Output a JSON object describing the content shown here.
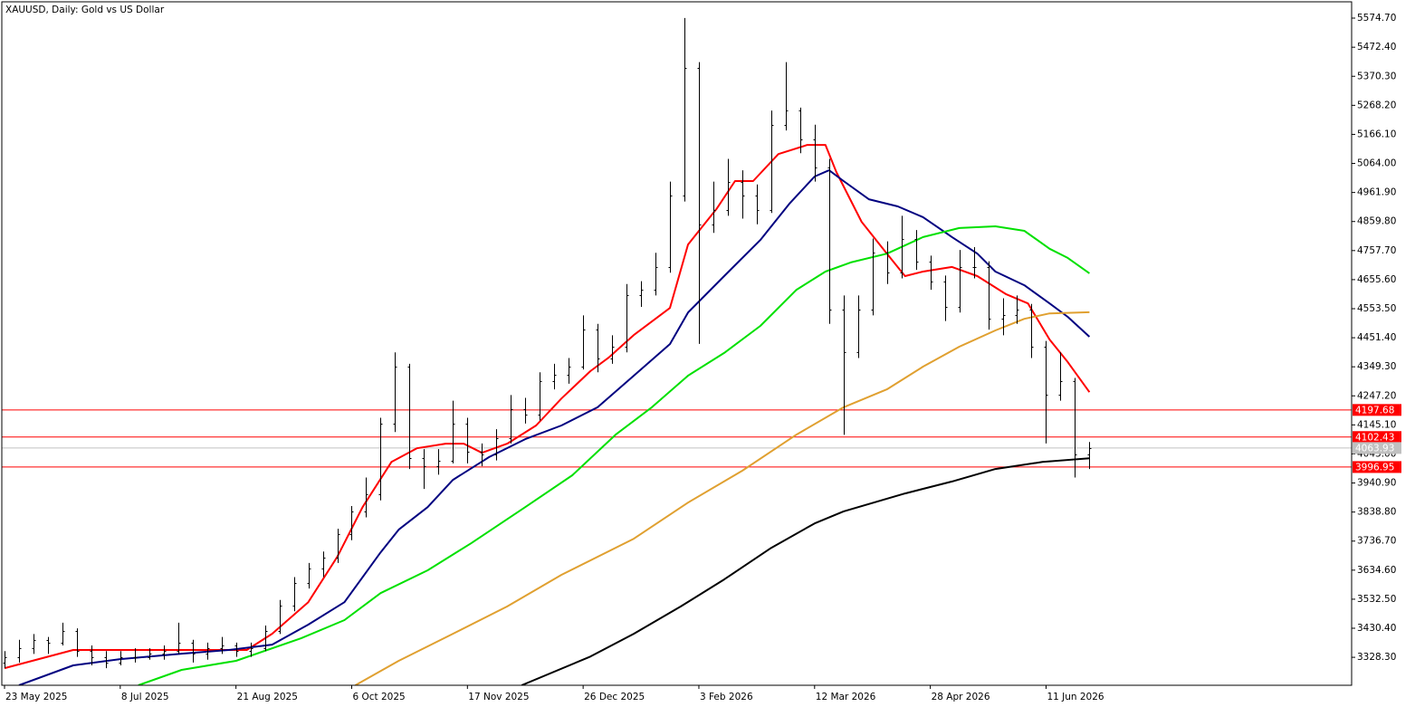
{
  "chart_data": {
    "type": "ohlc",
    "title": "XAUUSD, Daily:  Gold vs US Dollar",
    "color": "#000000",
    "xlim": [
      -0.75,
      372.5
    ],
    "ylim": [
      3230,
      5632
    ],
    "xticks": [
      {
        "value": 0,
        "label": "23 May 2025"
      },
      {
        "value": 32,
        "label": "8 Jul 2025"
      },
      {
        "value": 64,
        "label": "21 Aug 2025"
      },
      {
        "value": 96,
        "label": "6 Oct 2025"
      },
      {
        "value": 128,
        "label": "17 Nov 2025"
      },
      {
        "value": 160,
        "label": "26 Dec 2025"
      },
      {
        "value": 192,
        "label": "3 Feb 2026"
      },
      {
        "value": 224,
        "label": "12 Mar 2026"
      },
      {
        "value": 256,
        "label": "28 Apr 2026"
      },
      {
        "value": 288,
        "label": "11 Jun 2026"
      }
    ],
    "yticks": [
      {
        "value": 5574.7,
        "label": "5574.70"
      },
      {
        "value": 5472.4,
        "label": "5472.40"
      },
      {
        "value": 5370.3,
        "label": "5370.30"
      },
      {
        "value": 5268.2,
        "label": "5268.20"
      },
      {
        "value": 5166.1,
        "label": "5166.10"
      },
      {
        "value": 5064,
        "label": "5064.00"
      },
      {
        "value": 4961.9,
        "label": "4961.90"
      },
      {
        "value": 4859.8,
        "label": "4859.80"
      },
      {
        "value": 4757.7,
        "label": "4757.70"
      },
      {
        "value": 4655.6,
        "label": "4655.60"
      },
      {
        "value": 4553.5,
        "label": "4553.50"
      },
      {
        "value": 4451.4,
        "label": "4451.40"
      },
      {
        "value": 4349.3,
        "label": "4349.30"
      },
      {
        "value": 4247.2,
        "label": "4247.20"
      },
      {
        "value": 4145.1,
        "label": "4145.10"
      },
      {
        "value": 4043,
        "label": "4043.00"
      },
      {
        "value": 3940.9,
        "label": "3940.90"
      },
      {
        "value": 3838.8,
        "label": "3838.80"
      },
      {
        "value": 3736.7,
        "label": "3736.70"
      },
      {
        "value": 3634.6,
        "label": "3634.60"
      },
      {
        "value": 3532.5,
        "label": "3532.50"
      },
      {
        "value": 3430.4,
        "label": "3430.40"
      },
      {
        "value": 3328.3,
        "label": "3328.30"
      }
    ],
    "x": [
      0,
      4,
      8,
      12,
      16,
      20,
      24,
      28,
      32,
      36,
      40,
      44,
      48,
      52,
      56,
      60,
      64,
      68,
      72,
      76,
      80,
      84,
      88,
      92,
      96,
      100,
      104,
      108,
      112,
      116,
      120,
      124,
      128,
      132,
      136,
      140,
      144,
      148,
      152,
      156,
      160,
      164,
      168,
      172,
      176,
      180,
      184,
      188,
      192,
      196,
      200,
      204,
      208,
      212,
      216,
      220,
      224,
      228,
      232,
      236,
      240,
      244,
      248,
      252,
      256,
      260,
      264,
      268,
      272,
      276,
      280,
      284,
      288,
      292,
      296,
      300
    ],
    "open": [
      3310,
      3330,
      3360,
      3390,
      3380,
      3420,
      3350,
      3330,
      3310,
      3330,
      3330,
      3340,
      3350,
      3380,
      3340,
      3360,
      3370,
      3350,
      3360,
      3420,
      3510,
      3590,
      3640,
      3680,
      3760,
      3840,
      3900,
      4150,
      4350,
      4030,
      4000,
      4020,
      4150,
      4050,
      4040,
      4100,
      4200,
      4180,
      4300,
      4320,
      4350,
      4480,
      4380,
      4420,
      4600,
      4620,
      4700,
      4950,
      5400,
      4850,
      4900,
      5000,
      4950,
      4900,
      5200,
      5250,
      5150,
      5050,
      4550,
      4400,
      4550,
      4750,
      4680,
      4800,
      4720,
      4650,
      4560,
      4700,
      4700,
      4520,
      4530,
      4550,
      4420,
      4250,
      4300,
      4040
    ],
    "high": [
      3350,
      3390,
      3410,
      3400,
      3450,
      3430,
      3370,
      3350,
      3350,
      3360,
      3360,
      3370,
      3450,
      3390,
      3380,
      3400,
      3380,
      3380,
      3440,
      3530,
      3610,
      3660,
      3700,
      3780,
      3860,
      3960,
      4170,
      4400,
      4360,
      4060,
      4060,
      4230,
      4170,
      4080,
      4130,
      4250,
      4240,
      4330,
      4360,
      4380,
      4530,
      4500,
      4460,
      4640,
      4650,
      4750,
      5000,
      5575,
      5420,
      5000,
      5080,
      5040,
      4990,
      5250,
      5420,
      5260,
      5200,
      5080,
      4600,
      4600,
      4800,
      4790,
      4880,
      4830,
      4740,
      4670,
      4760,
      4770,
      4720,
      4590,
      4600,
      4570,
      4440,
      4400,
      4310,
      4085
    ],
    "low": [
      3290,
      3310,
      3340,
      3340,
      3370,
      3330,
      3300,
      3290,
      3300,
      3310,
      3320,
      3320,
      3340,
      3310,
      3320,
      3340,
      3330,
      3330,
      3350,
      3410,
      3490,
      3570,
      3610,
      3660,
      3740,
      3820,
      3880,
      4120,
      3990,
      3920,
      3970,
      4010,
      4010,
      4000,
      4020,
      4080,
      4150,
      4160,
      4270,
      4290,
      4340,
      4330,
      4360,
      4400,
      4560,
      4600,
      4680,
      4930,
      4430,
      4820,
      4880,
      4870,
      4850,
      4890,
      5180,
      5100,
      5000,
      4500,
      4110,
      4380,
      4530,
      4640,
      4660,
      4690,
      4620,
      4510,
      4540,
      4660,
      4480,
      4460,
      4500,
      4380,
      4080,
      4230,
      3960,
      3990
    ],
    "close": [
      3330,
      3360,
      3390,
      3380,
      3420,
      3350,
      3330,
      3310,
      3330,
      3330,
      3340,
      3350,
      3380,
      3340,
      3360,
      3370,
      3350,
      3360,
      3420,
      3510,
      3590,
      3640,
      3680,
      3760,
      3840,
      3900,
      4150,
      4350,
      4030,
      4000,
      4020,
      4150,
      4050,
      4040,
      4100,
      4200,
      4180,
      4300,
      4320,
      4350,
      4480,
      4380,
      4420,
      4600,
      4620,
      4700,
      4950,
      5400,
      4850,
      4900,
      5000,
      4950,
      4900,
      5200,
      5250,
      5150,
      5050,
      4550,
      4400,
      4550,
      4750,
      4680,
      4800,
      4720,
      4650,
      4560,
      4700,
      4700,
      4520,
      4530,
      4550,
      4420,
      4250,
      4300,
      4040,
      4064
    ],
    "series": [
      {
        "color": "#ff0000",
        "x": [
          0,
          19,
          67,
          74,
          84,
          92,
          99,
          107,
          114,
          122,
          127,
          132,
          139,
          147,
          154,
          162,
          167,
          174,
          184,
          189,
          197,
          202,
          207,
          214,
          222,
          227,
          230,
          237,
          244,
          249,
          254,
          262,
          269,
          277,
          283,
          289,
          294,
          300
        ],
        "values": [
          3290,
          3354,
          3354,
          3411,
          3522,
          3681,
          3856,
          4015,
          4063,
          4079,
          4079,
          4047,
          4079,
          4143,
          4238,
          4334,
          4381,
          4461,
          4556,
          4779,
          4906,
          5002,
          5002,
          5097,
          5129,
          5129,
          5034,
          4859,
          4747,
          4668,
          4684,
          4700,
          4668,
          4604,
          4572,
          4445,
          4366,
          4260
        ]
      },
      {
        "color": "#000080",
        "x": [
          4,
          19,
          32,
          49,
          62,
          74,
          84,
          94,
          104,
          109,
          117,
          124,
          134,
          144,
          154,
          164,
          174,
          184,
          189,
          199,
          209,
          217,
          224,
          228,
          232,
          239,
          247,
          254,
          262,
          269,
          274,
          282,
          289,
          294,
          300
        ],
        "values": [
          3230,
          3300,
          3322,
          3341,
          3354,
          3373,
          3443,
          3522,
          3697,
          3777,
          3856,
          3952,
          4032,
          4095,
          4143,
          4207,
          4318,
          4429,
          4540,
          4668,
          4795,
          4922,
          5018,
          5040,
          5002,
          4938,
          4913,
          4875,
          4805,
          4747,
          4684,
          4636,
          4572,
          4525,
          4455
        ]
      },
      {
        "color": "#00e000",
        "x": [
          37,
          49,
          64,
          82,
          94,
          104,
          117,
          129,
          144,
          157,
          169,
          179,
          189,
          199,
          209,
          219,
          227,
          234,
          244,
          254,
          264,
          274,
          282,
          289,
          294,
          300
        ],
        "values": [
          3230,
          3284,
          3316,
          3395,
          3459,
          3554,
          3634,
          3729,
          3856,
          3968,
          4111,
          4207,
          4318,
          4398,
          4493,
          4620,
          4684,
          4716,
          4747,
          4805,
          4837,
          4843,
          4827,
          4764,
          4732,
          4678
        ]
      },
      {
        "color": "#e0a030",
        "x": [
          97,
          109,
          124,
          139,
          154,
          174,
          189,
          204,
          219,
          232,
          244,
          254,
          264,
          274,
          282,
          289,
          300
        ],
        "values": [
          3230,
          3316,
          3411,
          3507,
          3618,
          3745,
          3872,
          3984,
          4111,
          4207,
          4270,
          4350,
          4420,
          4477,
          4518,
          4537,
          4541
        ]
      },
      {
        "color": "#000000",
        "x": [
          143,
          162,
          174,
          187,
          199,
          212,
          224,
          232,
          249,
          262,
          274,
          287,
          300
        ],
        "values": [
          3230,
          3331,
          3411,
          3507,
          3602,
          3713,
          3799,
          3841,
          3904,
          3946,
          3990,
          4015,
          4028
        ]
      }
    ],
    "levels": [
      {
        "value": 4197.68,
        "color": "#ff0000"
      },
      {
        "value": 4102.43,
        "color": "#ff0000"
      },
      {
        "value": 3996.95,
        "color": "#ff0000"
      },
      {
        "value": 4063.93,
        "color": "#c0c0c0"
      }
    ]
  }
}
